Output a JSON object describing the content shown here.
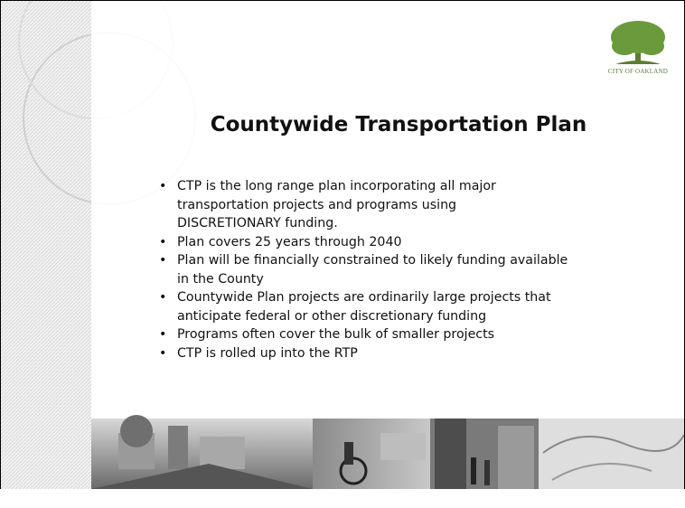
{
  "slide": {
    "logo_text": "CITY OF OAKLAND",
    "title": "Countywide Transportation Plan",
    "bullets": [
      [
        "CTP is the long range plan incorporating all major",
        "transportation projects and programs using",
        "DISCRETIONARY funding."
      ],
      [
        "Plan covers 25 years through 2040"
      ],
      [
        "Plan will be financially constrained to likely funding available",
        "in the County"
      ],
      [
        "Countywide Plan projects are ordinarily large projects that",
        "anticipate federal or other discretionary funding"
      ],
      [
        "Programs often cover the bulk of smaller projects"
      ],
      [
        "CTP is rolled up into the RTP"
      ]
    ]
  }
}
